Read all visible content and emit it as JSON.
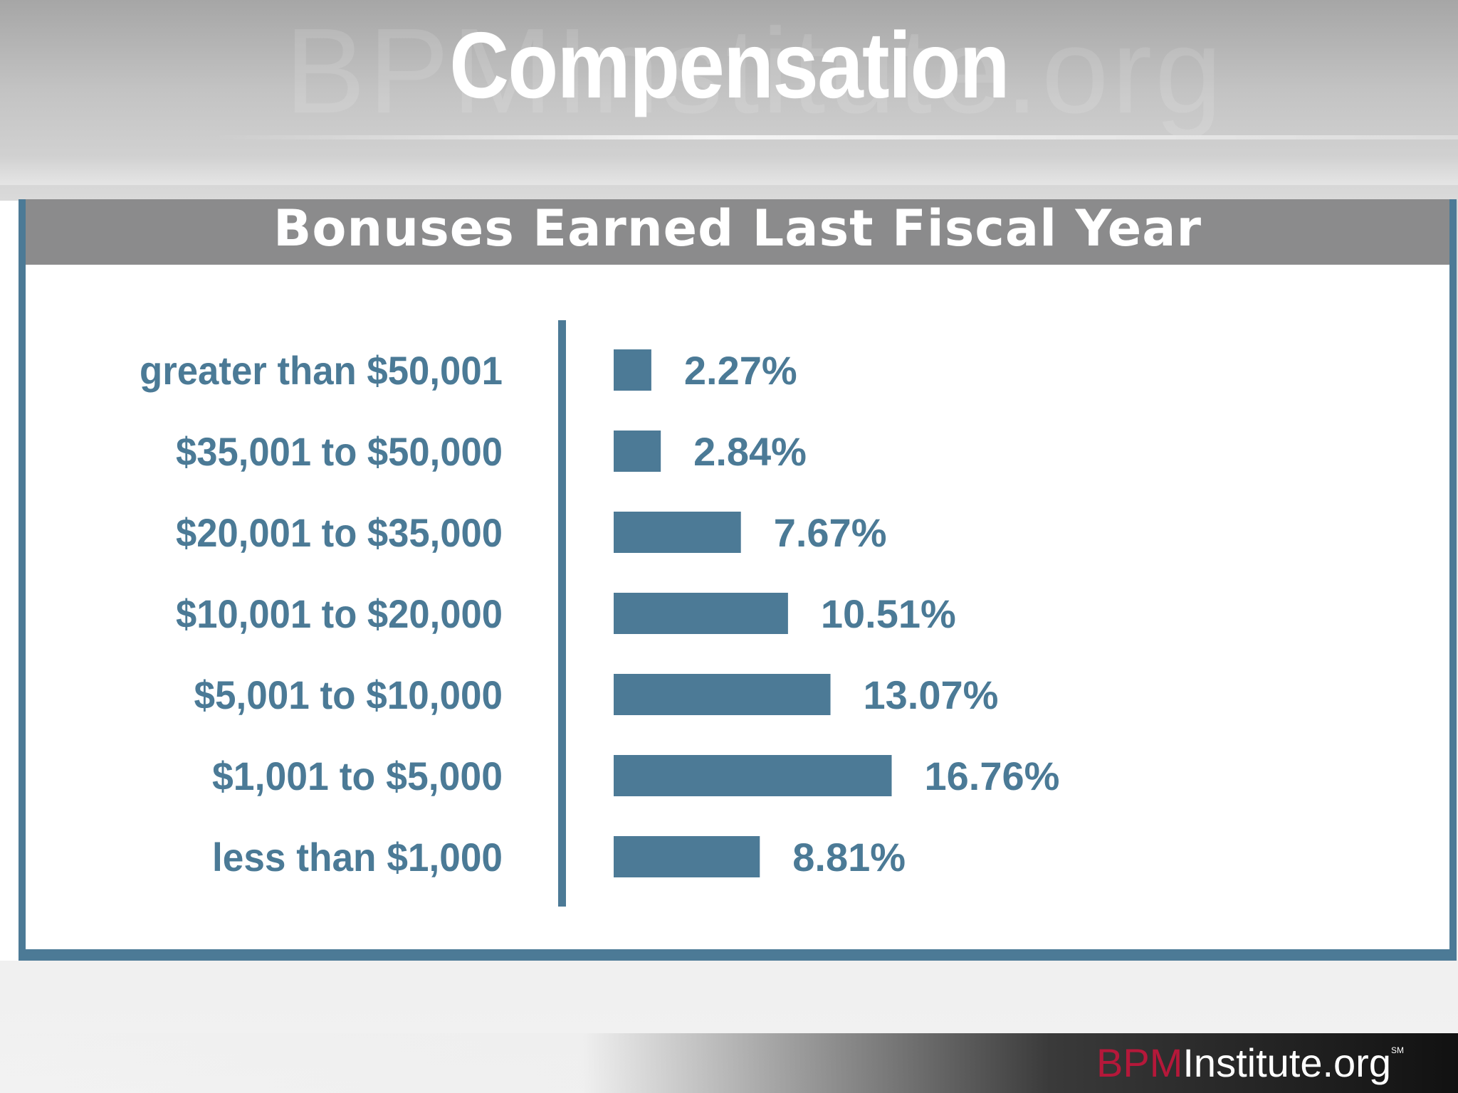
{
  "slide_title": "Compensation",
  "watermark": "BPMInstitute.org",
  "brand": {
    "part1": "BPM",
    "part2": "Institute.org",
    "mark": "SM"
  },
  "colors": {
    "bar": "#4c7a96",
    "label": "#4b7a96",
    "header": "#8b8b8c",
    "brand_red": "#b5183a"
  },
  "chart_data": {
    "type": "bar",
    "orientation": "horizontal",
    "title": "Bonuses Earned Last Fiscal Year",
    "categories": [
      "greater than $50,001",
      "$35,001 to $50,000",
      "$20,001 to $35,000",
      "$10,001 to $20,000",
      "$5,001 to $10,000",
      "$1,001 to $5,000",
      "less than $1,000"
    ],
    "values": [
      2.27,
      2.84,
      7.67,
      10.51,
      13.07,
      16.76,
      8.81
    ],
    "value_labels": [
      "2.27%",
      "2.84%",
      "7.67%",
      "10.51%",
      "13.07%",
      "16.76%",
      "8.81%"
    ],
    "unit": "%",
    "grid": false,
    "legend": "none"
  }
}
